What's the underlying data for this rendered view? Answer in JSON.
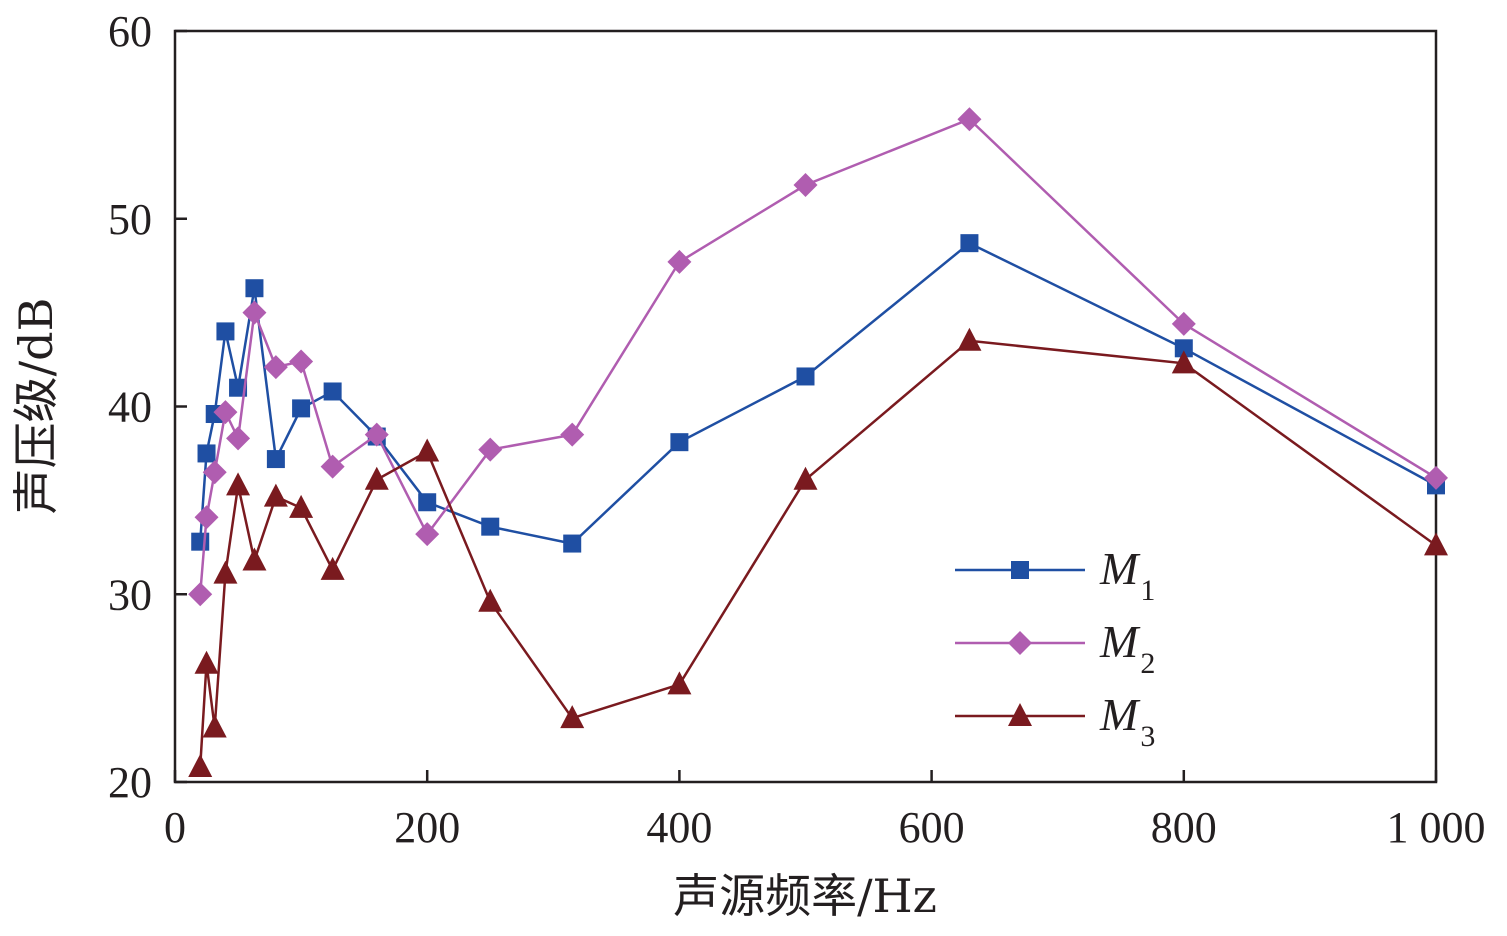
{
  "chart_data": {
    "type": "line",
    "xlabel": "声源频率/Hz",
    "ylabel": "声压级/dB",
    "xlim": [
      0,
      1000
    ],
    "ylim": [
      20,
      60
    ],
    "xticks": [
      0,
      200,
      400,
      600,
      800,
      1000
    ],
    "xtick_labels": [
      "0",
      "200",
      "400",
      "600",
      "800",
      "1 000"
    ],
    "yticks": [
      20,
      30,
      40,
      50,
      60
    ],
    "ytick_labels": [
      "20",
      "30",
      "40",
      "50",
      "60"
    ],
    "grid": false,
    "legend_position": "bottom-right",
    "x": [
      20,
      25,
      31.5,
      40,
      50,
      63,
      80,
      100,
      125,
      160,
      200,
      250,
      315,
      400,
      500,
      630,
      800,
      1000
    ],
    "series": [
      {
        "name": "M",
        "subscript": "1",
        "color": "#1f4fa3",
        "marker": "square",
        "values": [
          32.8,
          37.5,
          39.6,
          44.0,
          41.0,
          46.3,
          37.2,
          39.9,
          40.8,
          38.4,
          34.9,
          33.6,
          32.7,
          38.1,
          41.6,
          48.7,
          43.1,
          35.8
        ]
      },
      {
        "name": "M",
        "subscript": "2",
        "color": "#b05db0",
        "marker": "diamond",
        "values": [
          30.0,
          34.1,
          36.5,
          39.7,
          38.3,
          45.0,
          42.1,
          42.4,
          36.8,
          38.5,
          33.2,
          37.7,
          38.5,
          47.7,
          51.8,
          55.3,
          44.4,
          36.2
        ]
      },
      {
        "name": "M",
        "subscript": "3",
        "color": "#7a1a1f",
        "marker": "triangle",
        "values": [
          20.8,
          26.3,
          22.9,
          31.1,
          35.8,
          31.8,
          35.2,
          34.6,
          31.3,
          36.1,
          37.6,
          29.6,
          23.4,
          25.2,
          36.1,
          43.5,
          42.3,
          32.6
        ]
      }
    ]
  }
}
